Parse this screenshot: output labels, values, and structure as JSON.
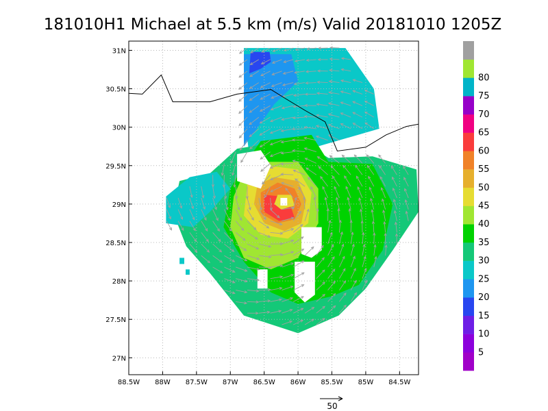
{
  "chart_data": {
    "type": "heatmap",
    "title": "181010H1 Michael at 5.5 km (m/s) Valid 20181010 1205Z",
    "storm_center": {
      "lon": -86.22,
      "lat": 29.03
    },
    "x_ticks": [
      {
        "value": -88.5,
        "label": "88.5W"
      },
      {
        "value": -88,
        "label": "88W"
      },
      {
        "value": -87.5,
        "label": "87.5W"
      },
      {
        "value": -87,
        "label": "87W"
      },
      {
        "value": -86.5,
        "label": "86.5W"
      },
      {
        "value": -86,
        "label": "86W"
      },
      {
        "value": -85.5,
        "label": "85.5W"
      },
      {
        "value": -85,
        "label": "85W"
      },
      {
        "value": -84.5,
        "label": "84.5W"
      }
    ],
    "y_ticks": [
      {
        "value": 27,
        "label": "27N"
      },
      {
        "value": 27.5,
        "label": "27.5N"
      },
      {
        "value": 28,
        "label": "28N"
      },
      {
        "value": 28.5,
        "label": "28.5N"
      },
      {
        "value": 29,
        "label": "29N"
      },
      {
        "value": 29.5,
        "label": "29.5N"
      },
      {
        "value": 30,
        "label": "30N"
      },
      {
        "value": 30.5,
        "label": "30.5N"
      },
      {
        "value": 31,
        "label": "31N"
      }
    ],
    "xlim": [
      -88.5,
      -84.22
    ],
    "ylim": [
      26.78,
      31.12
    ],
    "grid": true,
    "colorbar": {
      "position": "right",
      "levels": [
        {
          "label": "",
          "color": "#a000c8",
          "min": 0,
          "max": 5
        },
        {
          "label": "5",
          "color": "#8c00dc",
          "min": 5,
          "max": 10
        },
        {
          "label": "10",
          "color": "#6e1ee6",
          "min": 10,
          "max": 15
        },
        {
          "label": "15",
          "color": "#2846f0",
          "min": 15,
          "max": 20
        },
        {
          "label": "20",
          "color": "#1e96f0",
          "min": 20,
          "max": 25
        },
        {
          "label": "25",
          "color": "#0ac8c8",
          "min": 25,
          "max": 30
        },
        {
          "label": "30",
          "color": "#14c878",
          "min": 30,
          "max": 35
        },
        {
          "label": "35",
          "color": "#00d200",
          "min": 35,
          "max": 40
        },
        {
          "label": "40",
          "color": "#a0e632",
          "min": 40,
          "max": 45
        },
        {
          "label": "45",
          "color": "#e6dc32",
          "min": 45,
          "max": 50
        },
        {
          "label": "50",
          "color": "#e6af2d",
          "min": 50,
          "max": 55
        },
        {
          "label": "55",
          "color": "#f08228",
          "min": 55,
          "max": 60
        },
        {
          "label": "60",
          "color": "#fa3c3c",
          "min": 60,
          "max": 65
        },
        {
          "label": "65",
          "color": "#f00082",
          "min": 65,
          "max": 70
        },
        {
          "label": "70",
          "color": "#9600c8",
          "min": 70,
          "max": 75
        },
        {
          "label": "75",
          "color": "#00b4c8",
          "min": 75,
          "max": 80
        },
        {
          "label": "80",
          "color": "#a0e632",
          "min": 80,
          "max": 85
        },
        {
          "label": "",
          "color": "#a0a0a0",
          "min": 85,
          "max": 90
        }
      ]
    },
    "reference_vector": {
      "label": "50",
      "value": 50
    },
    "coastline": [
      [
        -88.5,
        30.44
      ],
      [
        -88.3,
        30.43
      ],
      [
        -88.02,
        30.68
      ],
      [
        -87.85,
        30.33
      ],
      [
        -87.3,
        30.33
      ],
      [
        -86.9,
        30.43
      ],
      [
        -86.4,
        30.49
      ],
      [
        -86.2,
        30.38
      ],
      [
        -85.9,
        30.22
      ],
      [
        -85.6,
        30.07
      ],
      [
        -85.42,
        29.69
      ],
      [
        -85.0,
        29.74
      ],
      [
        -84.7,
        29.9
      ],
      [
        -84.4,
        30.01
      ],
      [
        -84.22,
        30.04
      ]
    ],
    "wind_field": {
      "regions": [
        {
          "level": 25,
          "polygon": [
            [
              -86.8,
              31.03
            ],
            [
              -85.3,
              31.03
            ],
            [
              -84.88,
              30.5
            ],
            [
              -84.8,
              29.98
            ],
            [
              -85.9,
              29.7
            ],
            [
              -86.3,
              29.6
            ],
            [
              -86.7,
              29.5
            ],
            [
              -86.8,
              30.2
            ]
          ]
        },
        {
          "level": 20,
          "polygon": [
            [
              -86.8,
              30.95
            ],
            [
              -86.1,
              30.95
            ],
            [
              -86.0,
              30.6
            ],
            [
              -86.35,
              30.3
            ],
            [
              -86.55,
              30.05
            ],
            [
              -86.8,
              29.75
            ]
          ]
        },
        {
          "level": 15,
          "polygon": [
            [
              -86.7,
              30.98
            ],
            [
              -86.42,
              30.98
            ],
            [
              -86.4,
              30.85
            ],
            [
              -86.55,
              30.76
            ],
            [
              -86.72,
              30.7
            ]
          ]
        },
        {
          "level": 30,
          "polygon": [
            [
              -86.9,
              29.72
            ],
            [
              -86.0,
              29.85
            ],
            [
              -85.55,
              29.6
            ],
            [
              -84.9,
              29.62
            ],
            [
              -84.25,
              29.45
            ],
            [
              -84.22,
              28.9
            ],
            [
              -84.6,
              28.4
            ],
            [
              -85.0,
              27.9
            ],
            [
              -85.4,
              27.55
            ],
            [
              -86.0,
              27.32
            ],
            [
              -86.8,
              27.55
            ],
            [
              -87.3,
              28.1
            ],
            [
              -87.65,
              28.45
            ],
            [
              -87.85,
              28.9
            ],
            [
              -87.75,
              29.3
            ],
            [
              -87.3,
              29.4
            ]
          ]
        },
        {
          "level": 25,
          "polygon": [
            [
              -87.95,
              29.1
            ],
            [
              -87.6,
              29.35
            ],
            [
              -87.2,
              29.42
            ],
            [
              -87.0,
              29.2
            ],
            [
              -87.3,
              28.9
            ],
            [
              -87.55,
              28.7
            ],
            [
              -87.95,
              28.75
            ]
          ]
        },
        {
          "level": 35,
          "polygon": [
            [
              -86.55,
              29.82
            ],
            [
              -85.8,
              29.9
            ],
            [
              -85.55,
              29.55
            ],
            [
              -84.9,
              29.52
            ],
            [
              -84.6,
              29.0
            ],
            [
              -84.75,
              28.4
            ],
            [
              -85.1,
              27.95
            ],
            [
              -85.5,
              27.8
            ],
            [
              -86.0,
              27.7
            ],
            [
              -86.4,
              27.85
            ],
            [
              -86.8,
              28.25
            ],
            [
              -87.1,
              28.7
            ],
            [
              -87.0,
              29.2
            ],
            [
              -86.8,
              29.5
            ]
          ]
        },
        {
          "level": 40,
          "polygon": [
            [
              -86.55,
              29.55
            ],
            [
              -86.0,
              29.55
            ],
            [
              -85.7,
              29.2
            ],
            [
              -85.7,
              28.75
            ],
            [
              -86.0,
              28.3
            ],
            [
              -86.4,
              28.15
            ],
            [
              -86.8,
              28.3
            ],
            [
              -87.0,
              28.7
            ],
            [
              -86.95,
              29.1
            ],
            [
              -86.8,
              29.4
            ]
          ]
        },
        {
          "level": 45,
          "polygon": [
            [
              -86.45,
              29.5
            ],
            [
              -86.0,
              29.45
            ],
            [
              -85.8,
              29.15
            ],
            [
              -85.85,
              28.75
            ],
            [
              -86.15,
              28.55
            ],
            [
              -86.55,
              28.6
            ],
            [
              -86.8,
              28.85
            ],
            [
              -86.75,
              29.25
            ]
          ]
        },
        {
          "level": 50,
          "polygon": [
            [
              -86.35,
              29.35
            ],
            [
              -86.0,
              29.3
            ],
            [
              -85.88,
              29.05
            ],
            [
              -85.95,
              28.75
            ],
            [
              -86.2,
              28.65
            ],
            [
              -86.5,
              28.75
            ],
            [
              -86.65,
              29.0
            ],
            [
              -86.6,
              29.25
            ]
          ]
        },
        {
          "level": 55,
          "polygon": [
            [
              -86.3,
              29.28
            ],
            [
              -86.05,
              29.2
            ],
            [
              -85.95,
              29.0
            ],
            [
              -86.05,
              28.8
            ],
            [
              -86.3,
              28.75
            ],
            [
              -86.55,
              28.88
            ],
            [
              -86.55,
              29.15
            ]
          ]
        },
        {
          "level": 60,
          "polygon": [
            [
              -86.5,
              29.12
            ],
            [
              -86.25,
              29.1
            ],
            [
              -86.1,
              28.95
            ],
            [
              -86.05,
              28.82
            ],
            [
              -86.28,
              28.78
            ],
            [
              -86.5,
              28.9
            ]
          ]
        },
        {
          "level": 45,
          "polygon": [
            [
              -86.3,
              29.12
            ],
            [
              -86.1,
              29.12
            ],
            [
              -86.05,
              28.98
            ],
            [
              -86.25,
              28.93
            ],
            [
              -86.35,
              29.0
            ]
          ]
        },
        {
          "level": 0,
          "polygon": [
            [
              -86.26,
              29.08
            ],
            [
              -86.16,
              29.08
            ],
            [
              -86.16,
              28.98
            ],
            [
              -86.26,
              28.98
            ]
          ]
        },
        {
          "level": 0,
          "polygon": [
            [
              -85.95,
              28.7
            ],
            [
              -85.65,
              28.7
            ],
            [
              -85.65,
              28.4
            ],
            [
              -85.8,
              28.3
            ],
            [
              -85.95,
              28.35
            ]
          ]
        },
        {
          "level": 0,
          "polygon": [
            [
              -86.05,
              28.25
            ],
            [
              -85.75,
              28.25
            ],
            [
              -85.75,
              27.82
            ],
            [
              -85.9,
              27.72
            ],
            [
              -86.05,
              27.85
            ]
          ]
        },
        {
          "level": 0,
          "polygon": [
            [
              -86.6,
              28.15
            ],
            [
              -86.45,
              28.15
            ],
            [
              -86.45,
              27.9
            ],
            [
              -86.6,
              27.9
            ]
          ]
        },
        {
          "level": 0,
          "polygon": [
            [
              -86.9,
              29.65
            ],
            [
              -86.55,
              29.7
            ],
            [
              -86.4,
              29.5
            ],
            [
              -86.55,
              29.2
            ],
            [
              -86.9,
              29.3
            ]
          ]
        }
      ],
      "isolated_cells": [
        {
          "level": 25,
          "polygon": [
            [
              -87.75,
              28.3
            ],
            [
              -87.68,
              28.3
            ],
            [
              -87.68,
              28.22
            ],
            [
              -87.75,
              28.22
            ]
          ]
        },
        {
          "level": 25,
          "polygon": [
            [
              -87.66,
              28.15
            ],
            [
              -87.6,
              28.15
            ],
            [
              -87.6,
              28.08
            ],
            [
              -87.66,
              28.08
            ]
          ]
        }
      ]
    }
  }
}
